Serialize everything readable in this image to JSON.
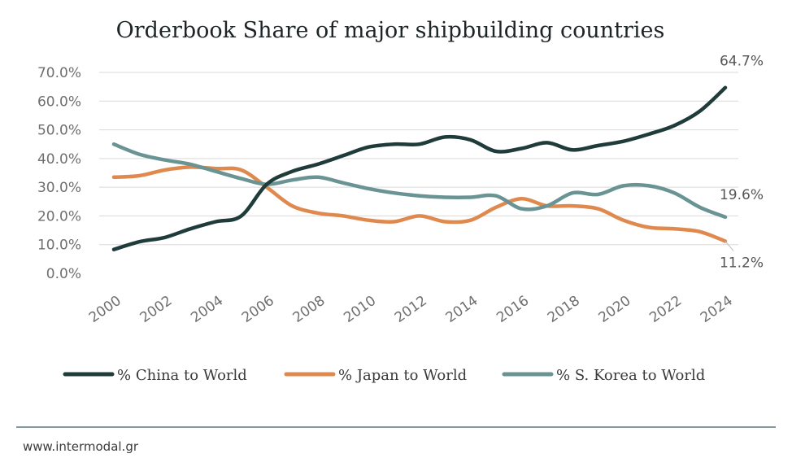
{
  "chart_data": {
    "type": "line",
    "title": "Orderbook Share of major shipbuilding countries",
    "xlabel": "",
    "ylabel": "",
    "x": [
      2000,
      2001,
      2002,
      2003,
      2004,
      2005,
      2006,
      2007,
      2008,
      2009,
      2010,
      2011,
      2012,
      2013,
      2014,
      2015,
      2016,
      2017,
      2018,
      2019,
      2020,
      2021,
      2022,
      2023,
      2024
    ],
    "x_ticks": [
      "2000",
      "2002",
      "2004",
      "2006",
      "2008",
      "2010",
      "2012",
      "2014",
      "2016",
      "2018",
      "2020",
      "2022",
      "2024"
    ],
    "y_ticks": [
      "0.0%",
      "10.0%",
      "20.0%",
      "30.0%",
      "40.0%",
      "50.0%",
      "60.0%",
      "70.0%"
    ],
    "ylim": [
      0,
      70
    ],
    "grid": true,
    "legend_position": "bottom",
    "series": [
      {
        "name": "% China to World",
        "color": "#1f3b3a",
        "values": [
          8.3,
          11.0,
          12.5,
          15.5,
          18.0,
          20.0,
          31.0,
          35.5,
          38.0,
          41.0,
          44.0,
          45.0,
          45.0,
          47.5,
          46.5,
          42.5,
          43.5,
          45.5,
          43.0,
          44.5,
          46.0,
          48.5,
          51.5,
          56.5,
          64.7
        ]
      },
      {
        "name": "% Japan to World",
        "color": "#e0894f",
        "values": [
          33.5,
          34.0,
          36.0,
          37.0,
          36.5,
          36.0,
          30.0,
          23.5,
          21.0,
          20.0,
          18.5,
          18.0,
          20.0,
          18.0,
          18.5,
          23.0,
          26.0,
          23.5,
          23.5,
          22.5,
          18.5,
          16.0,
          15.5,
          14.5,
          11.2
        ]
      },
      {
        "name": "% S. Korea to World",
        "color": "#6a9394",
        "values": [
          45.0,
          41.5,
          39.5,
          38.0,
          35.5,
          33.0,
          31.0,
          32.5,
          33.5,
          31.5,
          29.5,
          28.0,
          27.0,
          26.5,
          26.5,
          27.0,
          22.5,
          23.5,
          28.0,
          27.5,
          30.5,
          30.5,
          28.0,
          23.0,
          19.6
        ]
      }
    ],
    "annotations": [
      {
        "text": "64.7%",
        "series": 0
      },
      {
        "text": "19.6%",
        "series": 2
      },
      {
        "text": "11.2%",
        "series": 1
      }
    ]
  },
  "footer": {
    "source": "www.intermodal.gr"
  }
}
